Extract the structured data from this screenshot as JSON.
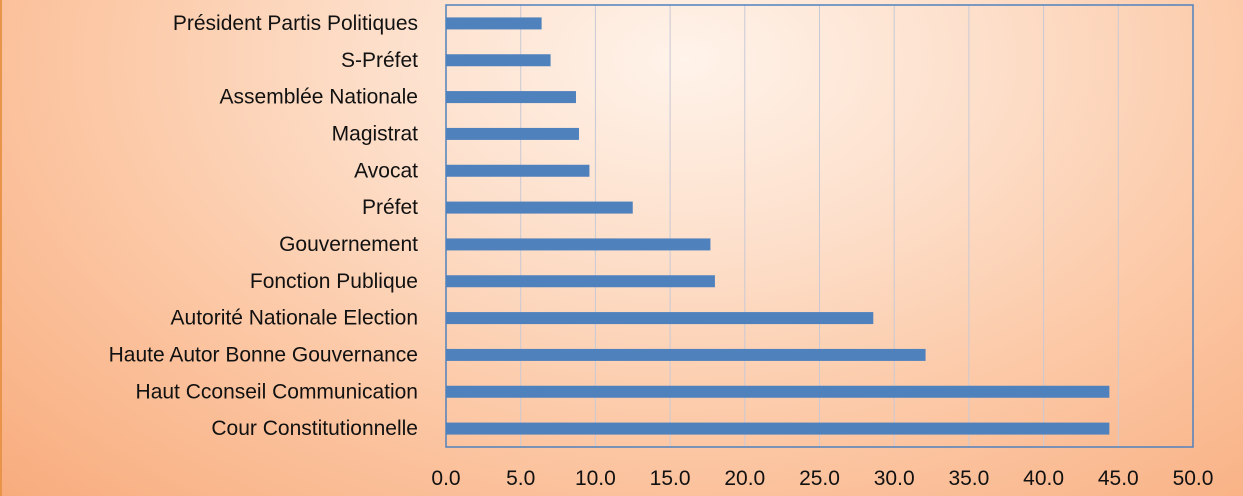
{
  "chart_data": {
    "type": "bar",
    "orientation": "horizontal",
    "categories": [
      "Président Partis Politiques",
      "S-Préfet",
      "Assemblée Nationale",
      "Magistrat",
      "Avocat",
      "Préfet",
      "Gouvernement",
      "Fonction Publique",
      "Autorité Nationale Election",
      "Haute Autor Bonne Gouvernance",
      "Haut Cconseil Communication",
      "Cour Constitutionnelle"
    ],
    "values": [
      6.4,
      7.0,
      8.7,
      8.9,
      9.6,
      12.5,
      17.7,
      18.0,
      28.6,
      32.1,
      44.4,
      44.4
    ],
    "xlim": [
      0,
      50
    ],
    "x_ticks": [
      "0.0",
      "5.0",
      "10.0",
      "15.0",
      "20.0",
      "25.0",
      "30.0",
      "35.0",
      "40.0",
      "45.0",
      "50.0"
    ],
    "title": "",
    "xlabel": "",
    "ylabel": "",
    "grid": "vertical",
    "legend": "none",
    "colors": {
      "bar": "#4f81bd",
      "plot_border": "#4f81bd",
      "gridline": "#c9c9d6",
      "background": "#fcc9a7",
      "page_border": "#e8944a"
    }
  }
}
